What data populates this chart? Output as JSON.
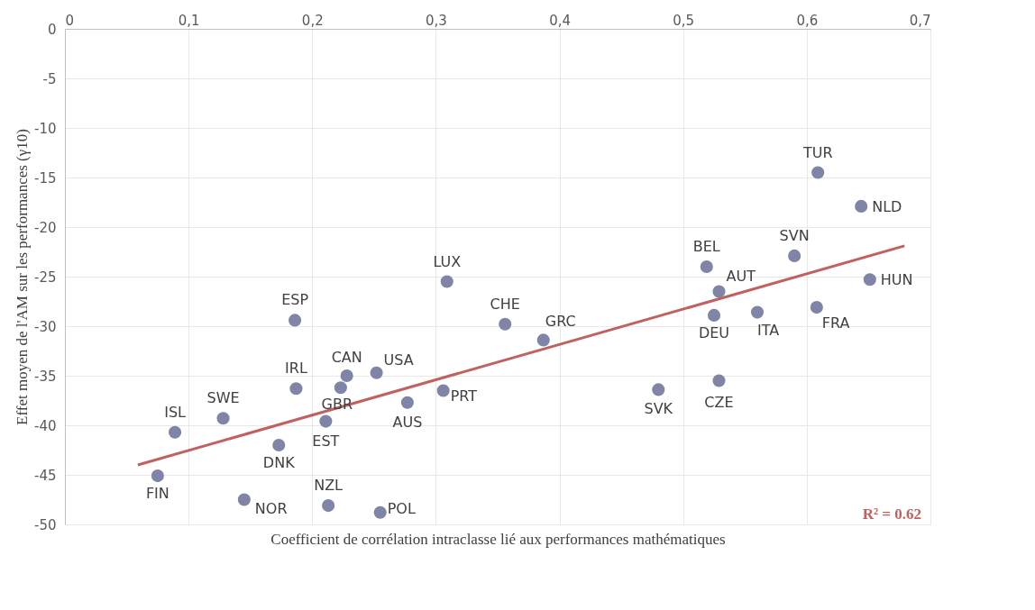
{
  "chart_data": {
    "type": "scatter",
    "xlabel": "Coefficient de corrélation intraclasse lié aux performances mathématiques",
    "ylabel": "Effet moyen de l'AM sur les performances (γ10)",
    "xlim": [
      0,
      0.7
    ],
    "xticks": [
      0,
      {
        "value": 0.1,
        "label": "0,1"
      },
      {
        "value": 0.2,
        "label": "0,2"
      },
      {
        "value": 0.3,
        "label": "0,3"
      },
      {
        "value": 0.4,
        "label": "0,4"
      },
      {
        "value": 0.5,
        "label": "0,5"
      },
      {
        "value": 0.6,
        "label": "0,6"
      },
      {
        "value": 0.7,
        "label": "0,7"
      }
    ],
    "ylim": [
      -50,
      0
    ],
    "yticks": [
      -50,
      -45,
      -40,
      -35,
      -30,
      -25,
      -20,
      -15,
      -10,
      -5,
      0
    ],
    "grid": true,
    "series": [
      {
        "color": "#8084a6",
        "marker": "circle",
        "x": [
          0.075,
          0.089,
          0.128,
          0.145,
          0.173,
          0.186,
          0.187,
          0.223,
          0.228,
          0.211,
          0.213,
          0.255,
          0.252,
          0.277,
          0.306,
          0.309,
          0.356,
          0.387,
          0.48,
          0.529,
          0.519,
          0.529,
          0.525,
          0.56,
          0.59,
          0.608,
          0.609,
          0.644,
          0.651
        ],
        "values": [
          -45.1,
          -40.7,
          -39.3,
          -47.5,
          -42.0,
          -29.4,
          -36.3,
          -36.2,
          -35.0,
          -39.6,
          -48.1,
          -48.8,
          -34.7,
          -37.7,
          -36.5,
          -25.5,
          -29.8,
          -31.4,
          -36.4,
          -35.5,
          -24.0,
          -26.5,
          -28.9,
          -28.6,
          -22.9,
          -28.1,
          -14.5,
          -17.9,
          -25.3
        ]
      },
      {
        "type": "line",
        "color": "#c0605f",
        "x": [
          0.059,
          0.679
        ],
        "values": [
          -44.0,
          -21.9
        ]
      }
    ],
    "annotations": [
      {
        "text": "FIN",
        "x": 0.075,
        "y": -45.1
      },
      {
        "text": "ISL",
        "x": 0.089,
        "y": -40.7
      },
      {
        "text": "SWE",
        "x": 0.128,
        "y": -39.3
      },
      {
        "text": "NOR",
        "x": 0.145,
        "y": -47.5
      },
      {
        "text": "DNK",
        "x": 0.173,
        "y": -42.0
      },
      {
        "text": "ESP",
        "x": 0.186,
        "y": -29.4
      },
      {
        "text": "IRL",
        "x": 0.187,
        "y": -36.3
      },
      {
        "text": "GBR",
        "x": 0.223,
        "y": -36.2
      },
      {
        "text": "CAN",
        "x": 0.228,
        "y": -35.0
      },
      {
        "text": "EST",
        "x": 0.211,
        "y": -39.6
      },
      {
        "text": "NZL",
        "x": 0.213,
        "y": -48.1
      },
      {
        "text": "POL",
        "x": 0.255,
        "y": -48.8
      },
      {
        "text": "USA",
        "x": 0.252,
        "y": -34.7
      },
      {
        "text": "AUS",
        "x": 0.277,
        "y": -37.7
      },
      {
        "text": "PRT",
        "x": 0.306,
        "y": -36.5
      },
      {
        "text": "LUX",
        "x": 0.309,
        "y": -25.5
      },
      {
        "text": "CHE",
        "x": 0.356,
        "y": -29.8
      },
      {
        "text": "GRC",
        "x": 0.387,
        "y": -31.4
      },
      {
        "text": "SVK",
        "x": 0.48,
        "y": -36.4
      },
      {
        "text": "CZE",
        "x": 0.529,
        "y": -35.5
      },
      {
        "text": "BEL",
        "x": 0.519,
        "y": -24.0
      },
      {
        "text": "AUT",
        "x": 0.529,
        "y": -26.5
      },
      {
        "text": "DEU",
        "x": 0.525,
        "y": -28.9
      },
      {
        "text": "ITA",
        "x": 0.56,
        "y": -28.6
      },
      {
        "text": "SVN",
        "x": 0.59,
        "y": -22.9
      },
      {
        "text": "FRA",
        "x": 0.608,
        "y": -28.1
      },
      {
        "text": "TUR",
        "x": 0.609,
        "y": -14.5
      },
      {
        "text": "NLD",
        "x": 0.644,
        "y": -17.9
      },
      {
        "text": "HUN",
        "x": 0.651,
        "y": -25.3
      },
      "R² = 0.62"
    ]
  }
}
